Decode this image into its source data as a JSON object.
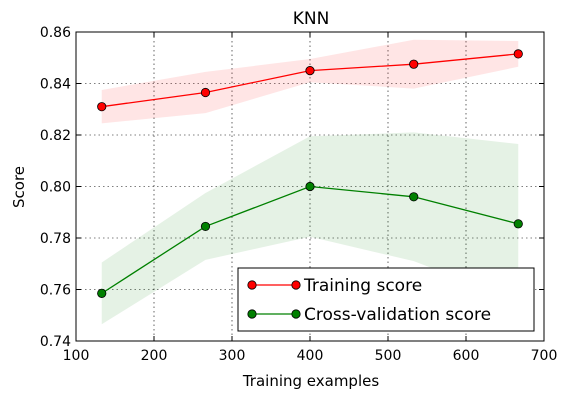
{
  "chart_data": {
    "type": "line",
    "title": "KNN",
    "xlabel": "Training examples",
    "ylabel": "Score",
    "xlim": [
      100,
      700
    ],
    "ylim": [
      0.74,
      0.86
    ],
    "x_ticks": [
      100,
      200,
      300,
      400,
      500,
      600,
      700
    ],
    "x_tick_labels": [
      "100",
      "200",
      "300",
      "400",
      "500",
      "600",
      "700"
    ],
    "y_ticks": [
      0.74,
      0.76,
      0.78,
      0.8,
      0.82,
      0.84,
      0.86
    ],
    "y_tick_labels": [
      "0.74",
      "0.76",
      "0.78",
      "0.80",
      "0.82",
      "0.84",
      "0.86"
    ],
    "grid": true,
    "legend_position": "bottom-right",
    "x": [
      133,
      266,
      400,
      533,
      667
    ],
    "series": [
      {
        "name": "Training score",
        "color": "#ff0000",
        "band_color": "#ff0000",
        "values": [
          0.831,
          0.8365,
          0.845,
          0.8475,
          0.8515
        ],
        "lower": [
          0.8245,
          0.8285,
          0.8405,
          0.838,
          0.8465
        ],
        "upper": [
          0.8375,
          0.8445,
          0.8495,
          0.857,
          0.8565
        ]
      },
      {
        "name": "Cross-validation score",
        "color": "#008000",
        "band_color": "#008000",
        "values": [
          0.7585,
          0.7845,
          0.8,
          0.796,
          0.7855
        ],
        "lower": [
          0.7465,
          0.7715,
          0.7805,
          0.771,
          0.7555
        ],
        "upper": [
          0.7705,
          0.7975,
          0.8195,
          0.821,
          0.8165
        ]
      }
    ]
  }
}
